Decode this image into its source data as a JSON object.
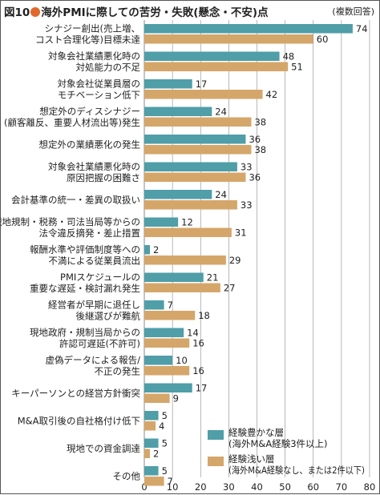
{
  "title_prefix": "図10",
  "title_text": "海外PMIに際しての苦労・失敗(懸念・不安)点",
  "note": "(複数回答)",
  "colors": {
    "experienced": "#4f9ea8",
    "inexperienced": "#d5a66a",
    "dot": "#e06a2e",
    "grid": "#888888"
  },
  "chart_data": {
    "type": "bar",
    "orientation": "horizontal",
    "categories": [
      [
        "シナジー創出(売上増、",
        "コスト合理化等)目標未達"
      ],
      [
        "対象会社業績悪化時の",
        "対処能力の不足"
      ],
      [
        "対象会社従業員層の",
        "モチベーション低下"
      ],
      [
        "想定外のディスシナジー",
        "(顧客離反、重要人材流出等)発生"
      ],
      [
        "想定外の業績悪化の発生"
      ],
      [
        "対象会社業績悪化時の",
        "原因把握の困難さ"
      ],
      [
        "会計基準の統一・差異の取扱い"
      ],
      [
        "現地規制・税務・司法当局等からの",
        "法令違反摘発・差止措置"
      ],
      [
        "報酬水準や評価制度等への",
        "不満による従業員流出"
      ],
      [
        "PMIスケジュールの",
        "重要な遅延・検討漏れ発生"
      ],
      [
        "経営者が早期に退任し",
        "後継選びが難航"
      ],
      [
        "現地政府・規制当局からの",
        "許認可遅延(不許可)"
      ],
      [
        "虚偽データによる報告/",
        "不正の発生"
      ],
      [
        "キーパーソンとの経営方針衝突"
      ],
      [
        "M&A取引後の自社格付け低下"
      ],
      [
        "現地での資金調達"
      ],
      [
        "その他"
      ]
    ],
    "series": [
      {
        "name": [
          "経験豊かな層",
          "(海外M&A経験3件以上)"
        ],
        "values": [
          74,
          48,
          17,
          24,
          36,
          33,
          24,
          12,
          2,
          21,
          7,
          14,
          10,
          17,
          5,
          5,
          5
        ]
      },
      {
        "name": [
          "経験浅い層",
          "(海外M&A経験なし、または2件以下)"
        ],
        "values": [
          60,
          51,
          42,
          38,
          38,
          36,
          33,
          31,
          29,
          27,
          18,
          16,
          16,
          9,
          4,
          2,
          7
        ]
      }
    ],
    "xlim": [
      0,
      80
    ],
    "xticks": [
      "0",
      "10",
      "20",
      "30",
      "40",
      "50",
      "60",
      "70",
      "80"
    ],
    "grid": true,
    "legend_position": "bottom-right"
  }
}
